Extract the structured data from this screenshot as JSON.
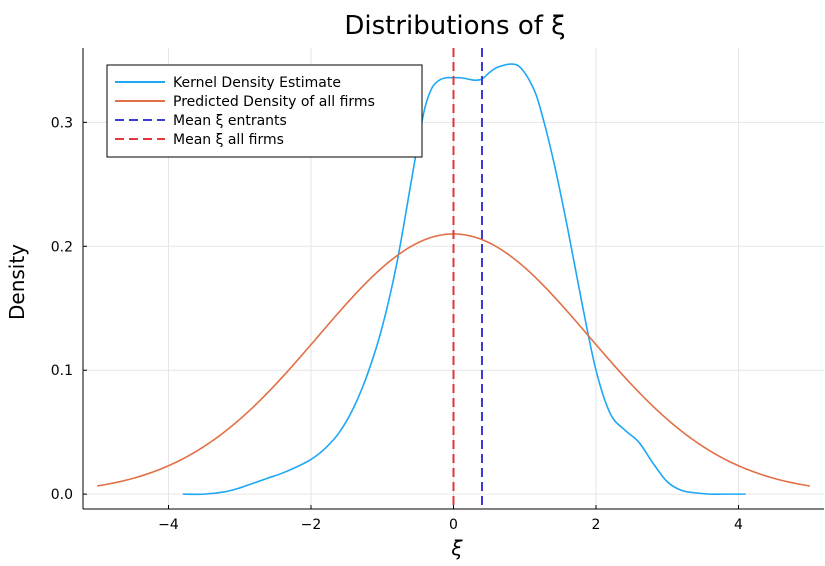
{
  "chart_data": {
    "type": "line",
    "title": "Distributions  of  ξ",
    "xlabel": "ξ",
    "ylabel": "Density",
    "xlim": [
      -5.2,
      5.2
    ],
    "ylim": [
      -0.012,
      0.36
    ],
    "xticks": [
      -4,
      -2,
      0,
      2,
      4
    ],
    "xtick_labels": [
      "−4",
      "−2",
      "0",
      "2",
      "4"
    ],
    "yticks": [
      0.0,
      0.1,
      0.2,
      0.3
    ],
    "ytick_labels": [
      "0.0",
      "0.1",
      "0.2",
      "0.3"
    ],
    "grid": true,
    "legend_position": "top-left",
    "series": [
      {
        "name": "Kernel Density Estimate",
        "kind": "line",
        "dash": false,
        "color": "#1ea7f5",
        "x": [
          -3.8,
          -3.5,
          -3.2,
          -3.0,
          -2.8,
          -2.6,
          -2.4,
          -2.2,
          -2.0,
          -1.8,
          -1.6,
          -1.4,
          -1.2,
          -1.0,
          -0.8,
          -0.6,
          -0.5,
          -0.4,
          -0.3,
          -0.2,
          -0.1,
          0.0,
          0.1,
          0.2,
          0.3,
          0.4,
          0.5,
          0.6,
          0.7,
          0.8,
          0.9,
          1.0,
          1.1,
          1.2,
          1.4,
          1.6,
          1.8,
          2.0,
          2.2,
          2.4,
          2.6,
          2.8,
          3.0,
          3.2,
          3.4,
          3.6,
          3.8,
          4.1
        ],
        "y": [
          0.0,
          0.0,
          0.002,
          0.005,
          0.009,
          0.013,
          0.017,
          0.022,
          0.028,
          0.037,
          0.05,
          0.07,
          0.098,
          0.135,
          0.185,
          0.25,
          0.283,
          0.312,
          0.328,
          0.334,
          0.336,
          0.336,
          0.336,
          0.335,
          0.334,
          0.335,
          0.34,
          0.344,
          0.346,
          0.347,
          0.346,
          0.34,
          0.33,
          0.315,
          0.27,
          0.215,
          0.155,
          0.1,
          0.065,
          0.052,
          0.042,
          0.025,
          0.01,
          0.003,
          0.001,
          0.0,
          0.0,
          0.0
        ]
      },
      {
        "name": "Predicted Density of all firms",
        "kind": "gaussian",
        "dash": false,
        "color": "#e26f46",
        "mean": 0.0,
        "sd": 1.9,
        "x_range": [
          -5.0,
          5.0
        ]
      },
      {
        "name": "Mean ξ entrants",
        "kind": "vline",
        "dash": true,
        "color": "#3b3bd6",
        "x": 0.4
      },
      {
        "name": "Mean ξ all firms",
        "kind": "vline",
        "dash": true,
        "color": "#e2363b",
        "x": 0.0
      }
    ]
  }
}
